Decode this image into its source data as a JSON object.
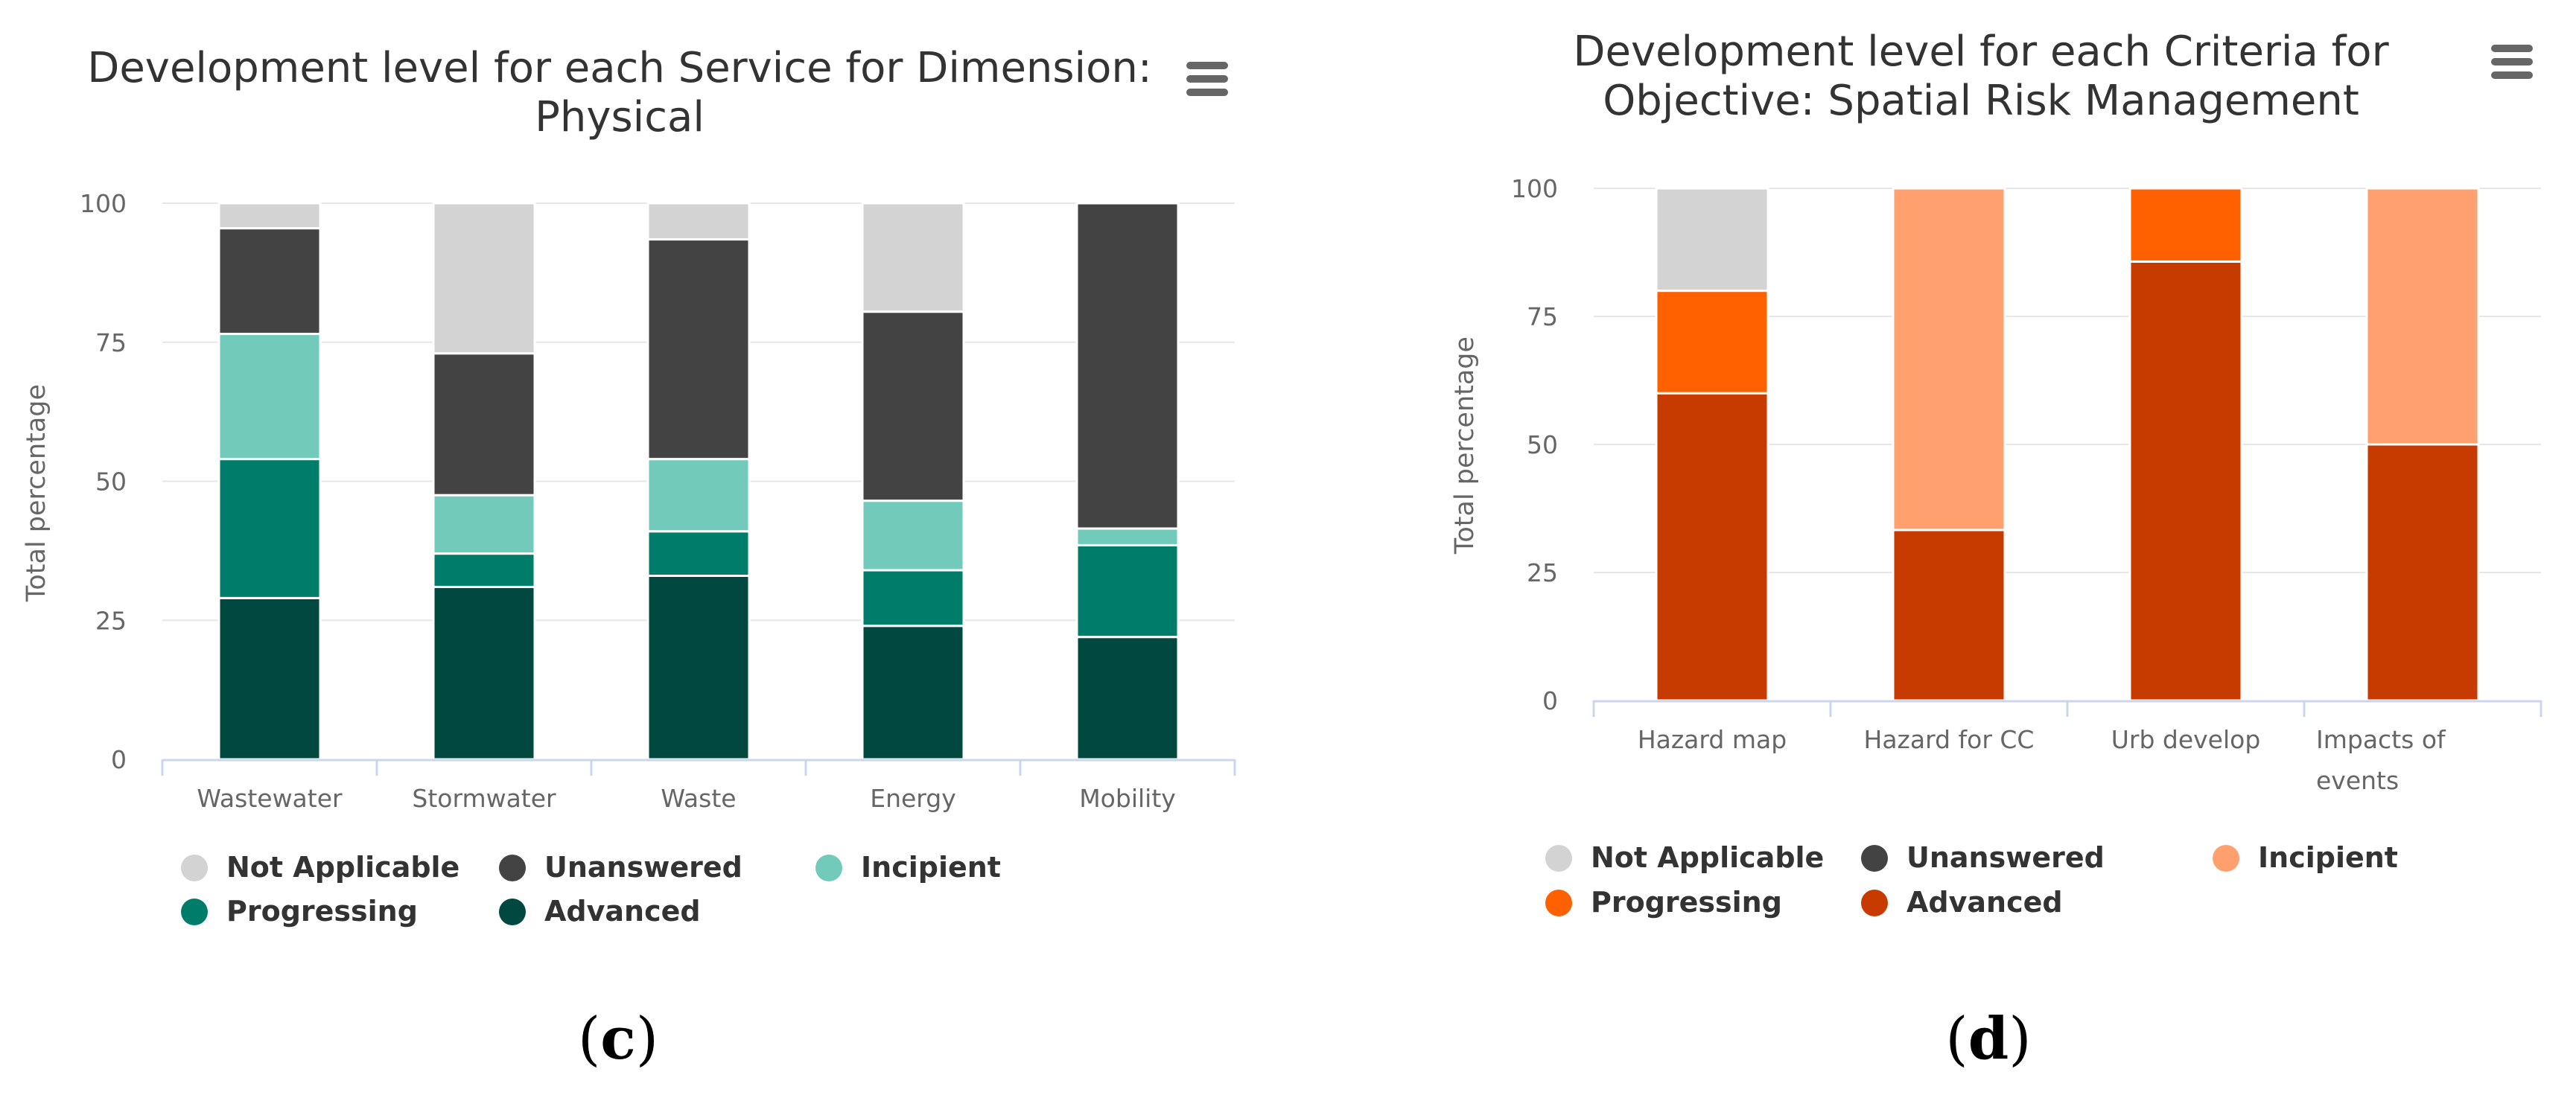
{
  "chart_data": [
    {
      "type": "bar",
      "stacked": true,
      "title_lines": [
        "Development level for each Service for Dimension:",
        "Physical"
      ],
      "ylabel": "Total percentage",
      "ylim": [
        0,
        100
      ],
      "yticks": [
        "0",
        "25",
        "50",
        "75",
        "100"
      ],
      "categories": [
        "Wastewater",
        "Stormwater",
        "Waste",
        "Energy",
        "Mobility"
      ],
      "series": [
        {
          "name": "Advanced",
          "color": "#004840",
          "values": [
            29,
            31,
            33,
            24,
            22
          ]
        },
        {
          "name": "Progressing",
          "color": "#007d6a",
          "values": [
            25,
            6,
            8,
            10,
            16.5
          ]
        },
        {
          "name": "Incipient",
          "color": "#72cbba",
          "values": [
            22.5,
            10.5,
            13,
            12.5,
            3
          ]
        },
        {
          "name": "Unanswered",
          "color": "#434343",
          "values": [
            19,
            25.5,
            39.5,
            34,
            58.5
          ]
        },
        {
          "name": "Not Applicable",
          "color": "#d3d3d3",
          "values": [
            4.5,
            27,
            6.5,
            19.5,
            0
          ]
        }
      ],
      "legend": [
        {
          "name": "Not Applicable",
          "color": "#d3d3d3"
        },
        {
          "name": "Unanswered",
          "color": "#434343"
        },
        {
          "name": "Incipient",
          "color": "#72cbba"
        },
        {
          "name": "Progressing",
          "color": "#007d6a"
        },
        {
          "name": "Advanced",
          "color": "#004840"
        }
      ],
      "caption_open": "(",
      "caption_letter": "c",
      "caption_close": ")"
    },
    {
      "type": "bar",
      "stacked": true,
      "title_lines": [
        "Development level for each Criteria for",
        "Objective: Spatial Risk Management"
      ],
      "ylabel": "Total percentage",
      "ylim": [
        0,
        100
      ],
      "yticks": [
        "0",
        "25",
        "50",
        "75",
        "100"
      ],
      "categories": [
        "Hazard map",
        "Hazard for CC",
        "Urb develop",
        "Impacts of events"
      ],
      "category_lines": [
        [
          "Hazard map"
        ],
        [
          "Hazard for CC"
        ],
        [
          "Urb develop"
        ],
        [
          "Impacts of",
          "events"
        ]
      ],
      "series": [
        {
          "name": "Advanced",
          "color": "#c73a00",
          "values": [
            60,
            33.3,
            85.7,
            50
          ]
        },
        {
          "name": "Progressing",
          "color": "#ff6000",
          "values": [
            20,
            0,
            14.3,
            0
          ]
        },
        {
          "name": "Incipient",
          "color": "#ffa06e",
          "values": [
            0,
            66.7,
            0,
            50
          ]
        },
        {
          "name": "Unanswered",
          "color": "#434343",
          "values": [
            0,
            0,
            0,
            0
          ]
        },
        {
          "name": "Not Applicable",
          "color": "#d3d3d3",
          "values": [
            20,
            0,
            0,
            0
          ]
        }
      ],
      "legend": [
        {
          "name": "Not Applicable",
          "color": "#d3d3d3"
        },
        {
          "name": "Unanswered",
          "color": "#434343"
        },
        {
          "name": "Incipient",
          "color": "#ffa06e"
        },
        {
          "name": "Progressing",
          "color": "#ff6000"
        },
        {
          "name": "Advanced",
          "color": "#c73a00"
        }
      ],
      "caption_open": "(",
      "caption_letter": "d",
      "caption_close": ")"
    }
  ]
}
